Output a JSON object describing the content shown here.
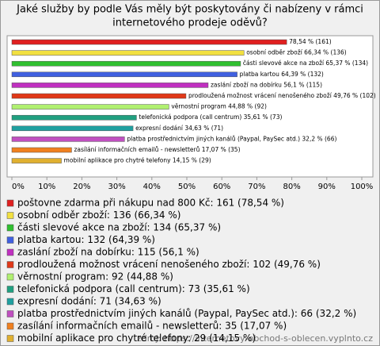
{
  "chart_data": {
    "type": "bar",
    "orientation": "horizontal",
    "title": [
      "Jaké služby by podle Vás měly být poskytovány či nabízeny v rámci",
      "internetového prodeje oděvů?"
    ],
    "categories": [
      "poštovne zdarma při nákupu nad 800 Kč: 161 (78,54 %)",
      "osobní odběr zboží: 136 (66,34 %)",
      "části slevové akce na zboží: 134 (65,37 %)",
      "platba kartou: 132 (64,39 %)",
      "zaslání zboží na dobírku: 115 (56,1 %)",
      "prodloužená možnost vrácení nenošeného zboží: 102 (49,76 %)",
      "věrnostní program: 92 (44,88 %)",
      "telefonická podpora (call centrum): 73 (35,61 %)",
      "expresní dodání: 71 (34,63 %)",
      "platba prostřednictvím jiných kanálů (Paypal, PaySec atd.): 66 (32,2 %)",
      "zasílání informačních emailů - newsletterů: 35 (17,07 %)",
      "mobilní aplikace pro chytré telefony: 29 (14,15 %)"
    ],
    "values": [
      78.54,
      66.34,
      65.37,
      64.39,
      56.1,
      49.76,
      44.88,
      35.61,
      34.63,
      32.2,
      17.07,
      14.15
    ],
    "value_labels": [
      "78,54 % (161)",
      "osobní odběr zboží 66,34 % (136)",
      "části slevové akce na zboží 65,37 % (134)",
      "platba kartou 64,39 % (132)",
      "zaslání zboží na dobírku 56,1 % (115)",
      "prodloužená možnost vrácení nenošeného zboží 49,76 % (102)",
      "věrnostní program 44,88 % (92)",
      "telefonická podpora (call centrum) 35,61 % (73)",
      "expresní dodání 34,63 % (71)",
      "platba prostřednictvím jiných kanálů (Paypal, PaySec atd.) 32,2 % (66)",
      "zasílání informačních emailů - newsletterů 17,07 % (35)",
      "mobilní aplikace pro chytré telefony 14,15 % (29)"
    ],
    "colors": [
      "#e02020",
      "#f2e040",
      "#30c030",
      "#4060e0",
      "#c030c0",
      "#e03818",
      "#b0f070",
      "#20a080",
      "#20a0a0",
      "#c050c0",
      "#f08020",
      "#e0b030"
    ],
    "xlim": [
      0,
      100
    ],
    "xticks": [
      {
        "value": 0,
        "label": "0%"
      },
      {
        "value": 10,
        "label": "10%"
      },
      {
        "value": 20,
        "label": "20%"
      },
      {
        "value": 30,
        "label": "30%"
      },
      {
        "value": 40,
        "label": "40%"
      },
      {
        "value": 50,
        "label": "50%"
      },
      {
        "value": 60,
        "label": "60%"
      },
      {
        "value": 70,
        "label": "70%"
      },
      {
        "value": 80,
        "label": "80%"
      },
      {
        "value": 90,
        "label": "90%"
      },
      {
        "value": 100,
        "label": "100%"
      }
    ],
    "source": "zdroj: https://internetovy-obchod-s-oblecen.vyplnto.cz"
  }
}
